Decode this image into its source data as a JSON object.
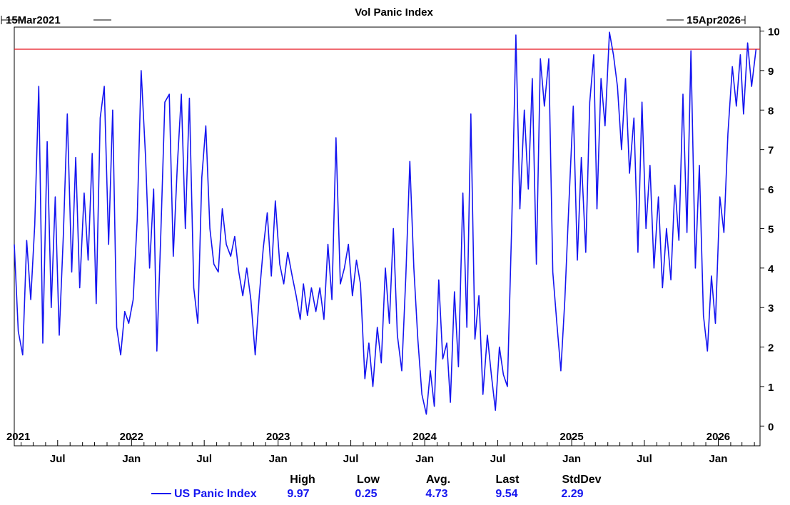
{
  "chart_data": {
    "type": "line",
    "title": "Vol Panic Index",
    "start_label": "15Mar2021",
    "end_label": "15Apr2026",
    "x_range": [
      "2021-03-15",
      "2026-04-15"
    ],
    "ylim": [
      -0.5,
      10.1
    ],
    "y_ticks": [
      0,
      1,
      2,
      3,
      4,
      5,
      6,
      7,
      8,
      9,
      10
    ],
    "year_labels": [
      {
        "date": "2021-03-25",
        "label": "2021"
      },
      {
        "date": "2022-01-01",
        "label": "2022"
      },
      {
        "date": "2023-01-01",
        "label": "2023"
      },
      {
        "date": "2024-01-01",
        "label": "2024"
      },
      {
        "date": "2025-01-01",
        "label": "2025"
      },
      {
        "date": "2026-01-01",
        "label": "2026"
      }
    ],
    "month_labels": [
      {
        "date": "2021-07-01",
        "label": "Jul"
      },
      {
        "date": "2022-01-01",
        "label": "Jan"
      },
      {
        "date": "2022-07-01",
        "label": "Jul"
      },
      {
        "date": "2023-01-01",
        "label": "Jan"
      },
      {
        "date": "2023-07-01",
        "label": "Jul"
      },
      {
        "date": "2024-01-01",
        "label": "Jan"
      },
      {
        "date": "2024-07-01",
        "label": "Jul"
      },
      {
        "date": "2025-01-01",
        "label": "Jan"
      },
      {
        "date": "2025-07-01",
        "label": "Jul"
      },
      {
        "date": "2026-01-01",
        "label": "Jan"
      }
    ],
    "reference_line": {
      "value": 9.54,
      "color": "#e8141e"
    },
    "series": [
      {
        "name": "US Panic Index",
        "color": "#1515f0",
        "points": [
          [
            "2021-03-15",
            4.6
          ],
          [
            "2021-03-25",
            2.4
          ],
          [
            "2021-04-05",
            1.8
          ],
          [
            "2021-04-15",
            4.7
          ],
          [
            "2021-04-25",
            3.2
          ],
          [
            "2021-05-05",
            5.1
          ],
          [
            "2021-05-15",
            8.6
          ],
          [
            "2021-05-25",
            2.1
          ],
          [
            "2021-06-05",
            7.2
          ],
          [
            "2021-06-15",
            3.0
          ],
          [
            "2021-06-25",
            5.8
          ],
          [
            "2021-07-05",
            2.3
          ],
          [
            "2021-07-15",
            4.8
          ],
          [
            "2021-07-25",
            7.9
          ],
          [
            "2021-08-05",
            3.9
          ],
          [
            "2021-08-15",
            6.8
          ],
          [
            "2021-08-25",
            3.5
          ],
          [
            "2021-09-05",
            5.9
          ],
          [
            "2021-09-15",
            4.2
          ],
          [
            "2021-09-25",
            6.9
          ],
          [
            "2021-10-05",
            3.1
          ],
          [
            "2021-10-15",
            7.8
          ],
          [
            "2021-10-25",
            8.6
          ],
          [
            "2021-11-05",
            4.6
          ],
          [
            "2021-11-15",
            8.0
          ],
          [
            "2021-11-25",
            2.5
          ],
          [
            "2021-12-05",
            1.8
          ],
          [
            "2021-12-15",
            2.9
          ],
          [
            "2021-12-25",
            2.6
          ],
          [
            "2022-01-05",
            3.2
          ],
          [
            "2022-01-15",
            5.2
          ],
          [
            "2022-01-25",
            9.0
          ],
          [
            "2022-02-05",
            6.8
          ],
          [
            "2022-02-15",
            4.0
          ],
          [
            "2022-02-25",
            6.0
          ],
          [
            "2022-03-05",
            1.9
          ],
          [
            "2022-03-15",
            4.9
          ],
          [
            "2022-03-25",
            8.2
          ],
          [
            "2022-04-05",
            8.4
          ],
          [
            "2022-04-15",
            4.3
          ],
          [
            "2022-04-25",
            6.6
          ],
          [
            "2022-05-05",
            8.4
          ],
          [
            "2022-05-15",
            5.0
          ],
          [
            "2022-05-25",
            8.3
          ],
          [
            "2022-06-05",
            3.5
          ],
          [
            "2022-06-15",
            2.6
          ],
          [
            "2022-06-25",
            6.3
          ],
          [
            "2022-07-05",
            7.6
          ],
          [
            "2022-07-15",
            5.0
          ],
          [
            "2022-07-25",
            4.1
          ],
          [
            "2022-08-05",
            3.9
          ],
          [
            "2022-08-15",
            5.5
          ],
          [
            "2022-08-25",
            4.6
          ],
          [
            "2022-09-05",
            4.3
          ],
          [
            "2022-09-15",
            4.8
          ],
          [
            "2022-09-25",
            3.9
          ],
          [
            "2022-10-05",
            3.3
          ],
          [
            "2022-10-15",
            4.0
          ],
          [
            "2022-10-25",
            3.2
          ],
          [
            "2022-11-05",
            1.8
          ],
          [
            "2022-11-15",
            3.3
          ],
          [
            "2022-11-25",
            4.5
          ],
          [
            "2022-12-05",
            5.4
          ],
          [
            "2022-12-15",
            3.8
          ],
          [
            "2022-12-25",
            5.7
          ],
          [
            "2023-01-05",
            4.1
          ],
          [
            "2023-01-15",
            3.6
          ],
          [
            "2023-01-25",
            4.4
          ],
          [
            "2023-02-05",
            3.8
          ],
          [
            "2023-02-15",
            3.3
          ],
          [
            "2023-02-25",
            2.7
          ],
          [
            "2023-03-05",
            3.6
          ],
          [
            "2023-03-15",
            2.8
          ],
          [
            "2023-03-25",
            3.5
          ],
          [
            "2023-04-05",
            2.9
          ],
          [
            "2023-04-15",
            3.5
          ],
          [
            "2023-04-25",
            2.7
          ],
          [
            "2023-05-05",
            4.6
          ],
          [
            "2023-05-15",
            3.2
          ],
          [
            "2023-05-25",
            7.3
          ],
          [
            "2023-06-05",
            3.6
          ],
          [
            "2023-06-15",
            4.0
          ],
          [
            "2023-06-25",
            4.6
          ],
          [
            "2023-07-05",
            3.3
          ],
          [
            "2023-07-15",
            4.2
          ],
          [
            "2023-07-25",
            3.6
          ],
          [
            "2023-08-05",
            1.2
          ],
          [
            "2023-08-15",
            2.1
          ],
          [
            "2023-08-25",
            1.0
          ],
          [
            "2023-09-05",
            2.5
          ],
          [
            "2023-09-15",
            1.6
          ],
          [
            "2023-09-25",
            4.0
          ],
          [
            "2023-10-05",
            2.6
          ],
          [
            "2023-10-15",
            5.0
          ],
          [
            "2023-10-25",
            2.3
          ],
          [
            "2023-11-05",
            1.4
          ],
          [
            "2023-11-15",
            3.8
          ],
          [
            "2023-11-25",
            6.7
          ],
          [
            "2023-12-05",
            4.0
          ],
          [
            "2023-12-15",
            2.2
          ],
          [
            "2023-12-25",
            0.8
          ],
          [
            "2024-01-05",
            0.3
          ],
          [
            "2024-01-15",
            1.4
          ],
          [
            "2024-01-25",
            0.5
          ],
          [
            "2024-02-05",
            3.7
          ],
          [
            "2024-02-15",
            1.7
          ],
          [
            "2024-02-25",
            2.1
          ],
          [
            "2024-03-05",
            0.6
          ],
          [
            "2024-03-15",
            3.4
          ],
          [
            "2024-03-25",
            1.5
          ],
          [
            "2024-04-05",
            5.9
          ],
          [
            "2024-04-15",
            2.5
          ],
          [
            "2024-04-25",
            7.9
          ],
          [
            "2024-05-05",
            2.2
          ],
          [
            "2024-05-15",
            3.3
          ],
          [
            "2024-05-25",
            0.8
          ],
          [
            "2024-06-05",
            2.3
          ],
          [
            "2024-06-15",
            1.3
          ],
          [
            "2024-06-25",
            0.4
          ],
          [
            "2024-07-05",
            2.0
          ],
          [
            "2024-07-15",
            1.3
          ],
          [
            "2024-07-25",
            1.0
          ],
          [
            "2024-08-05",
            5.2
          ],
          [
            "2024-08-15",
            9.9
          ],
          [
            "2024-08-25",
            5.5
          ],
          [
            "2024-09-05",
            8.0
          ],
          [
            "2024-09-15",
            6.0
          ],
          [
            "2024-09-25",
            8.8
          ],
          [
            "2024-10-05",
            4.1
          ],
          [
            "2024-10-15",
            9.3
          ],
          [
            "2024-10-25",
            8.1
          ],
          [
            "2024-11-05",
            9.3
          ],
          [
            "2024-11-15",
            3.9
          ],
          [
            "2024-11-25",
            2.6
          ],
          [
            "2024-12-05",
            1.4
          ],
          [
            "2024-12-15",
            3.2
          ],
          [
            "2024-12-25",
            5.6
          ],
          [
            "2025-01-05",
            8.1
          ],
          [
            "2025-01-15",
            4.2
          ],
          [
            "2025-01-25",
            6.8
          ],
          [
            "2025-02-05",
            4.4
          ],
          [
            "2025-02-15",
            8.2
          ],
          [
            "2025-02-25",
            9.4
          ],
          [
            "2025-03-05",
            5.5
          ],
          [
            "2025-03-15",
            8.8
          ],
          [
            "2025-03-25",
            7.6
          ],
          [
            "2025-04-05",
            9.97
          ],
          [
            "2025-04-15",
            9.4
          ],
          [
            "2025-04-25",
            8.6
          ],
          [
            "2025-05-05",
            7.0
          ],
          [
            "2025-05-15",
            8.8
          ],
          [
            "2025-05-25",
            6.4
          ],
          [
            "2025-06-05",
            7.8
          ],
          [
            "2025-06-15",
            4.4
          ],
          [
            "2025-06-25",
            8.2
          ],
          [
            "2025-07-05",
            5.0
          ],
          [
            "2025-07-15",
            6.6
          ],
          [
            "2025-07-25",
            4.0
          ],
          [
            "2025-08-05",
            5.8
          ],
          [
            "2025-08-15",
            3.5
          ],
          [
            "2025-08-25",
            5.0
          ],
          [
            "2025-09-05",
            3.7
          ],
          [
            "2025-09-15",
            6.1
          ],
          [
            "2025-09-25",
            4.7
          ],
          [
            "2025-10-05",
            8.4
          ],
          [
            "2025-10-15",
            4.9
          ],
          [
            "2025-10-25",
            9.5
          ],
          [
            "2025-11-05",
            4.0
          ],
          [
            "2025-11-15",
            6.6
          ],
          [
            "2025-11-25",
            2.8
          ],
          [
            "2025-12-05",
            1.9
          ],
          [
            "2025-12-15",
            3.8
          ],
          [
            "2025-12-25",
            2.6
          ],
          [
            "2026-01-05",
            5.8
          ],
          [
            "2026-01-15",
            4.9
          ],
          [
            "2026-01-25",
            7.4
          ],
          [
            "2026-02-05",
            9.1
          ],
          [
            "2026-02-15",
            8.1
          ],
          [
            "2026-02-25",
            9.4
          ],
          [
            "2026-03-05",
            7.9
          ],
          [
            "2026-03-15",
            9.7
          ],
          [
            "2026-03-25",
            8.6
          ],
          [
            "2026-04-05",
            9.54
          ]
        ]
      }
    ],
    "stats": {
      "headers": [
        "High",
        "Low",
        "Avg.",
        "Last",
        "StdDev"
      ],
      "row": {
        "name": "US Panic Index",
        "values": [
          "9.97",
          "0.25",
          "4.73",
          "9.54",
          "2.29"
        ]
      }
    }
  }
}
